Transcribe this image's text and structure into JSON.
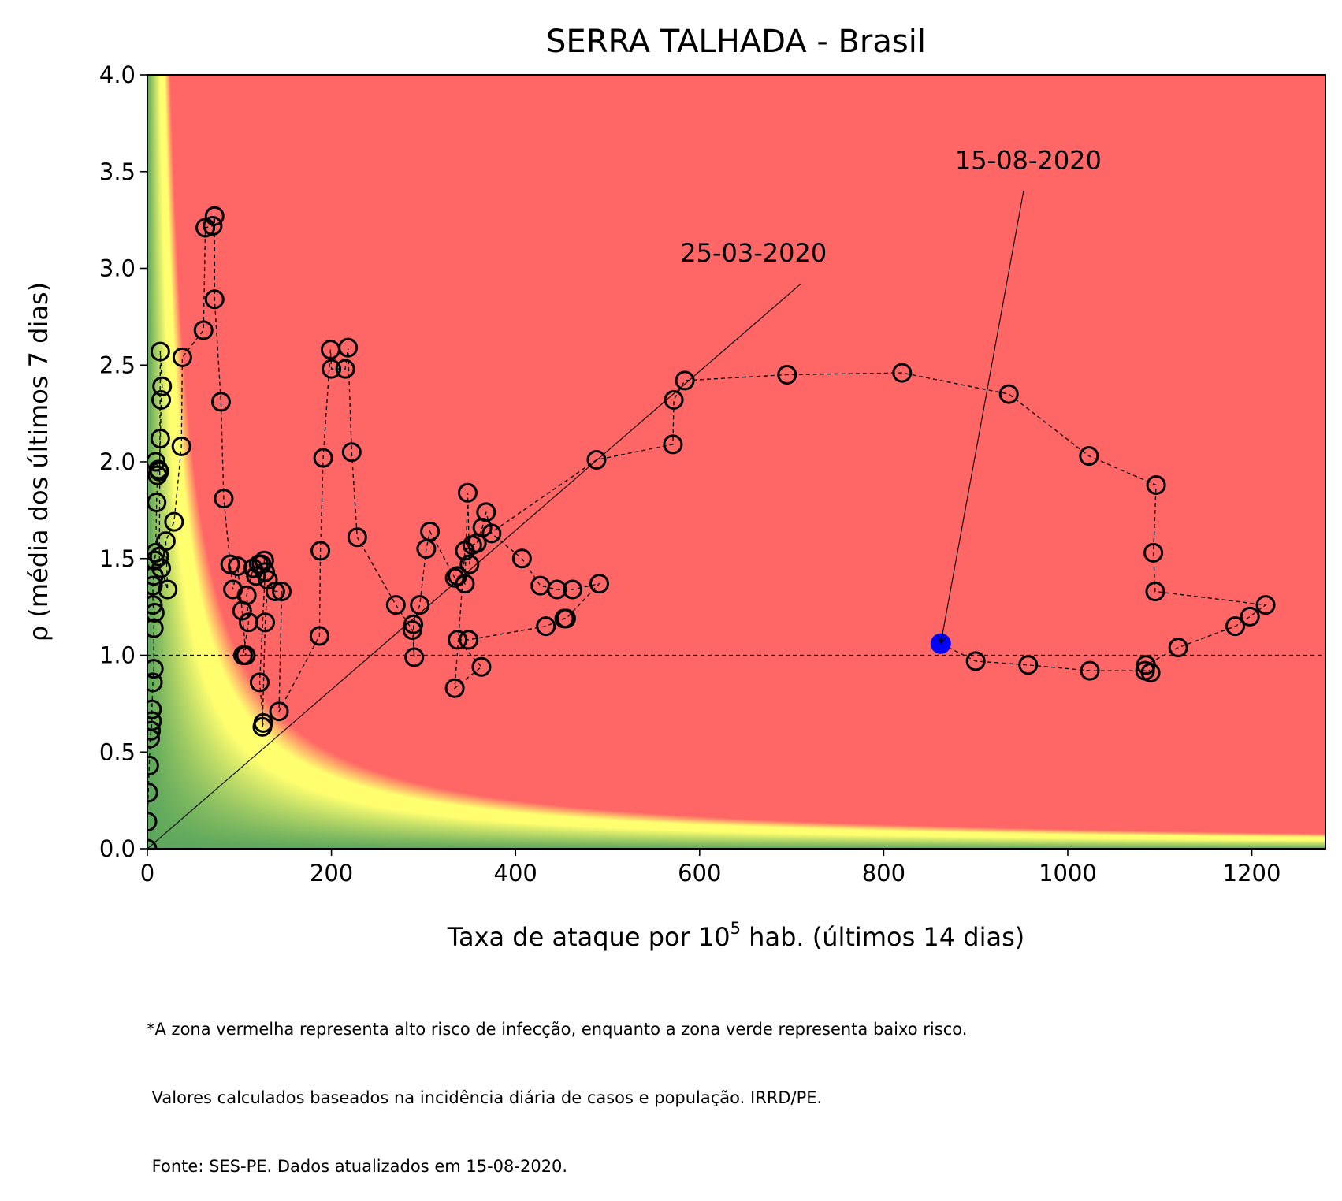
{
  "chart_data": {
    "type": "scatter",
    "title": "SERRA TALHADA - Brasil",
    "xlabel_parts": [
      "Taxa de ataque por 10",
      "5",
      " hab. (últimos 14 dias)"
    ],
    "ylabel": "ρ (média dos últimos 7 dias)",
    "xlim": [
      0,
      1280
    ],
    "ylim": [
      0,
      4.0
    ],
    "xticks": [
      0,
      200,
      400,
      600,
      800,
      1000,
      1200
    ],
    "xtick_labels": [
      "0",
      "200",
      "400",
      "600",
      "800",
      "1000",
      "1200"
    ],
    "yticks": [
      0,
      0.5,
      1.0,
      1.5,
      2.0,
      2.5,
      3.0,
      3.5,
      4.0
    ],
    "ytick_labels": [
      "0.0",
      "0.5",
      "1.0",
      "1.5",
      "2.0",
      "2.5",
      "3.0",
      "3.5",
      "4.0"
    ],
    "grid": false,
    "background": "risk heatmap: green (low risk) near origin, yellow band where attack rate × rho is moderate, red (high risk) elsewhere",
    "colors": {
      "red": "#ff6666",
      "yellow": "#ffff70",
      "green": "#5aa85a",
      "marker": "#000000",
      "last_point": "#0000ff"
    },
    "reference_line_y": 1.0,
    "annotations": [
      {
        "text": "25-03-2020",
        "x": 0,
        "y": 0,
        "text_x": 710,
        "text_y": 2.92
      },
      {
        "text": "15-08-2020",
        "x": 862,
        "y": 1.06,
        "text_x": 952,
        "text_y": 3.4
      }
    ],
    "series": [
      {
        "points": [
          [
            0,
            0
          ],
          [
            0,
            0.14
          ],
          [
            1,
            0.29
          ],
          [
            2,
            0.43
          ],
          [
            3,
            0.57
          ],
          [
            4,
            0.61
          ],
          [
            5,
            0.66
          ],
          [
            5,
            0.72
          ],
          [
            6,
            0.86
          ],
          [
            7,
            0.93
          ],
          [
            7,
            1.14
          ],
          [
            8,
            1.22
          ],
          [
            6,
            1.26
          ],
          [
            6,
            1.36
          ],
          [
            7,
            1.41
          ],
          [
            8,
            1.49
          ],
          [
            9,
            1.53
          ],
          [
            10,
            1.79
          ],
          [
            11,
            1.93
          ],
          [
            12,
            1.96
          ],
          [
            9,
            2.0
          ],
          [
            13,
            1.95
          ],
          [
            14,
            2.12
          ],
          [
            15,
            2.32
          ],
          [
            16,
            2.39
          ],
          [
            14,
            2.57
          ],
          [
            13,
            1.51
          ],
          [
            15,
            1.45
          ],
          [
            22,
            1.34
          ],
          [
            20,
            1.59
          ],
          [
            29,
            1.69
          ],
          [
            37,
            2.08
          ],
          [
            38,
            2.54
          ],
          [
            61,
            2.68
          ],
          [
            63,
            3.21
          ],
          [
            71,
            3.22
          ],
          [
            73,
            3.27
          ],
          [
            73,
            2.84
          ],
          [
            80,
            2.31
          ],
          [
            83,
            1.81
          ],
          [
            90,
            1.47
          ],
          [
            93,
            1.34
          ],
          [
            98,
            1.46
          ],
          [
            103,
            1.23
          ],
          [
            107,
            1.0
          ],
          [
            104,
            1.0
          ],
          [
            110,
            1.17
          ],
          [
            108,
            1.31
          ],
          [
            115,
            1.45
          ],
          [
            118,
            1.41
          ],
          [
            121,
            1.47
          ],
          [
            124,
            1.47
          ],
          [
            127,
            1.49
          ],
          [
            128,
            1.43
          ],
          [
            122,
            0.86
          ],
          [
            126,
            0.65
          ],
          [
            125,
            0.63
          ],
          [
            128,
            1.17
          ],
          [
            131,
            1.39
          ],
          [
            139,
            1.33
          ],
          [
            146,
            1.33
          ],
          [
            143,
            0.71
          ],
          [
            187,
            1.1
          ],
          [
            188,
            1.54
          ],
          [
            191,
            2.02
          ],
          [
            199,
            2.58
          ],
          [
            200,
            2.48
          ],
          [
            215,
            2.48
          ],
          [
            218,
            2.59
          ],
          [
            222,
            2.05
          ],
          [
            228,
            1.61
          ],
          [
            270,
            1.26
          ],
          [
            288,
            1.13
          ],
          [
            290,
            0.99
          ],
          [
            289,
            1.16
          ],
          [
            296,
            1.26
          ],
          [
            303,
            1.55
          ],
          [
            307,
            1.64
          ],
          [
            334,
            1.4
          ],
          [
            337,
            1.41
          ],
          [
            345,
            1.37
          ],
          [
            348,
            1.84
          ],
          [
            350,
            1.47
          ],
          [
            353,
            1.57
          ],
          [
            358,
            1.58
          ],
          [
            364,
            1.66
          ],
          [
            368,
            1.74
          ],
          [
            374,
            1.63
          ],
          [
            407,
            1.5
          ],
          [
            427,
            1.36
          ],
          [
            445,
            1.34
          ],
          [
            462,
            1.34
          ],
          [
            491,
            1.37
          ],
          [
            455,
            1.19
          ],
          [
            453,
            1.19
          ],
          [
            433,
            1.15
          ],
          [
            349,
            1.08
          ],
          [
            337,
            1.08
          ],
          [
            363,
            0.94
          ],
          [
            334,
            0.83
          ],
          [
            345,
            1.54
          ],
          [
            488,
            2.01
          ],
          [
            571,
            2.09
          ],
          [
            572,
            2.32
          ],
          [
            584,
            2.42
          ],
          [
            695,
            2.45
          ],
          [
            820,
            2.46
          ],
          [
            936,
            2.35
          ],
          [
            1023,
            2.03
          ],
          [
            1096,
            1.88
          ],
          [
            1093,
            1.53
          ],
          [
            1095,
            1.33
          ],
          [
            1215,
            1.26
          ],
          [
            1198,
            1.2
          ],
          [
            1182,
            1.15
          ],
          [
            1120,
            1.04
          ],
          [
            1085,
            0.95
          ],
          [
            1090,
            0.91
          ],
          [
            1084,
            0.92
          ],
          [
            1024,
            0.92
          ],
          [
            957,
            0.95
          ],
          [
            900,
            0.97
          ],
          [
            862,
            1.06
          ]
        ]
      }
    ],
    "last_point": [
      862,
      1.06
    ]
  },
  "footnote": [
    "*A zona vermelha representa alto risco de infecção, enquanto a zona verde representa baixo risco.",
    " Valores calculados baseados na incidência diária de casos e população. IRRD/PE.",
    " Fonte: SES-PE. Dados atualizados em 15-08-2020."
  ]
}
